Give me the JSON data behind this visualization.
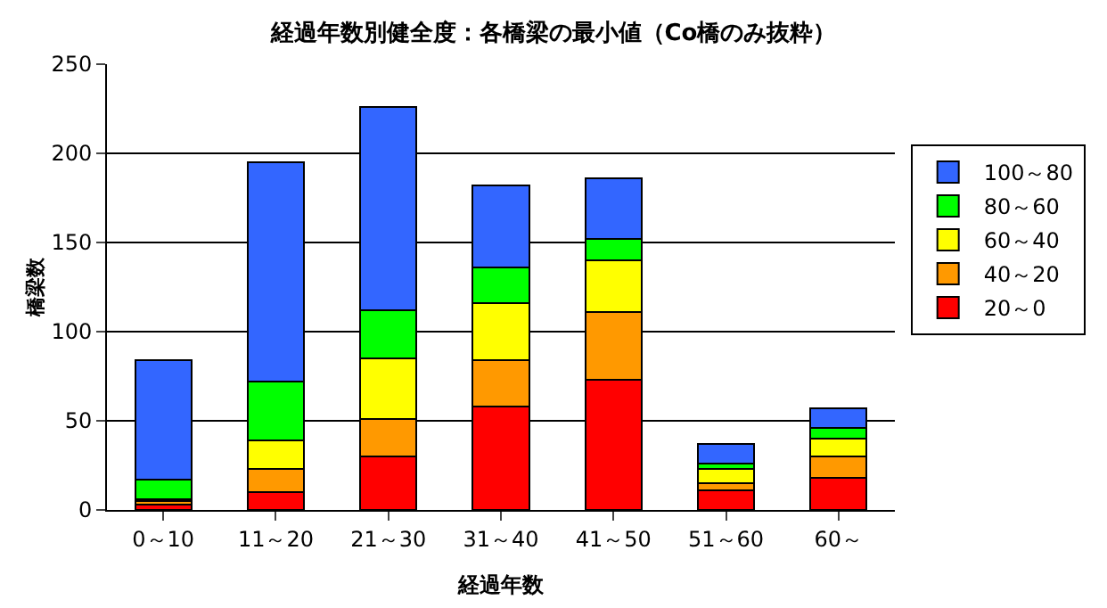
{
  "chart_data": {
    "type": "bar",
    "title": "経過年数別健全度：各橋梁の最小値（Co橋のみ抜粋）",
    "xlabel": "経過年数",
    "ylabel": "橋梁数",
    "categories": [
      "0～10",
      "11～20",
      "21～30",
      "31～40",
      "41～50",
      "51～60",
      "60～"
    ],
    "stacked": true,
    "ylim": [
      0,
      250
    ],
    "yticks": [
      0,
      50,
      100,
      150,
      200,
      250
    ],
    "grid": "y",
    "legend": "right",
    "series": [
      {
        "name": "20～0",
        "color": "#ff0000",
        "values": [
          3,
          10,
          30,
          58,
          73,
          11,
          18
        ]
      },
      {
        "name": "40～20",
        "color": "#ff9900",
        "values": [
          2,
          13,
          21,
          26,
          38,
          4,
          12
        ]
      },
      {
        "name": "60～40",
        "color": "#ffff00",
        "values": [
          1,
          16,
          34,
          32,
          29,
          8,
          10
        ]
      },
      {
        "name": "80～60",
        "color": "#00ff00",
        "values": [
          11,
          33,
          27,
          20,
          12,
          3,
          6
        ]
      },
      {
        "name": "100～80",
        "color": "#3366ff",
        "values": [
          67,
          123,
          114,
          46,
          34,
          11,
          11
        ]
      }
    ]
  }
}
